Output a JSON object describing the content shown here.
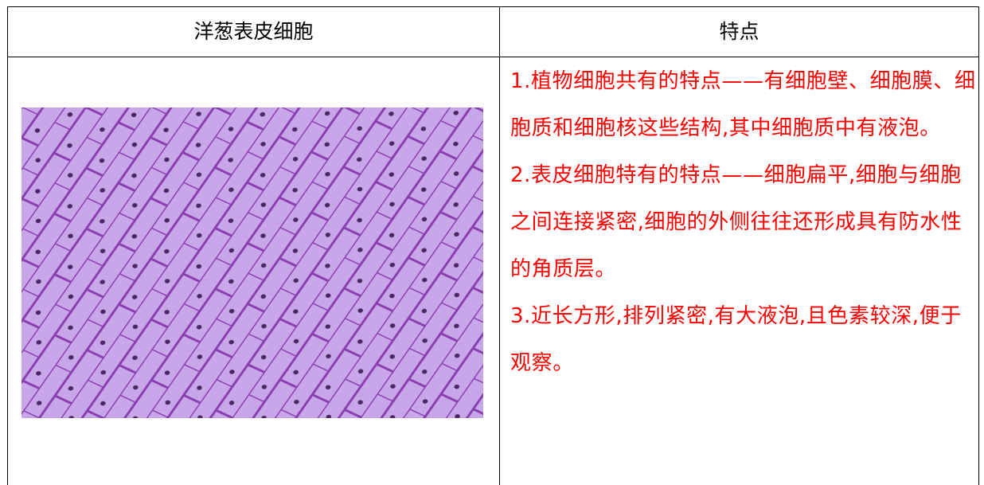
{
  "table": {
    "header": [
      "洋葱表皮细胞",
      "特点"
    ],
    "rows": [
      [
        "1.植物细胞共有的特点——有细胞壁、细胞膜、细胞质和细胞核这些结构,其中细胞质中有液泡。",
        "2.表皮细胞特有的特点——细胞扁平,细胞与细胞之间连接紧密,细胞的外侧往往还形成具有防水性的角质层。",
        "3.近长方形,排列紧密,有大液泡,且色素较深,便于观察。"
      ]
    ]
  }
}
